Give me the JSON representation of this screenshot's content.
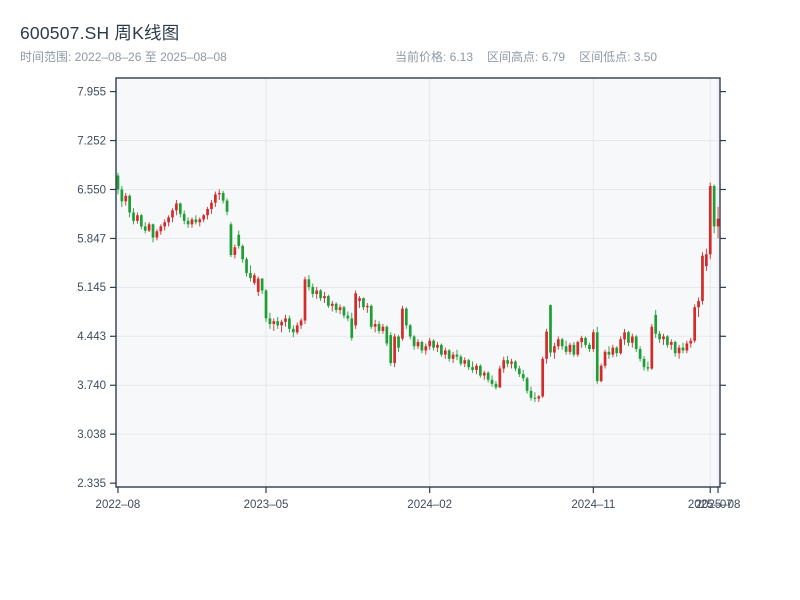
{
  "header": {
    "title": "600507.SH 周K线图",
    "subtitle": "时间范围: 2022–08–26 至 2025–08–08",
    "stats": [
      "当前价格: 6.13",
      "区间高点: 6.79",
      "区间低点: 3.50"
    ],
    "current_price": "6.13",
    "range_high": "6.79",
    "range_low": "3.50"
  },
  "chart_data": {
    "type": "candlestick",
    "period": "weekly",
    "symbol": "600507.SH",
    "x_range_labels": [
      "2022–08–26",
      "2025–08–08"
    ],
    "ylim": [
      2.28,
      8.15
    ],
    "grid": true,
    "panel_bg": "#f7f8fa",
    "grid_color": "#e5e8eb",
    "axis_color": "#2f3b4f",
    "label_color": "#3f4c5c",
    "up_color": "#d32a2a",
    "down_color": "#1e9e34",
    "y_ticks": [
      {
        "label": "7.955",
        "value": 7.955
      },
      {
        "label": "7.252",
        "value": 7.252
      },
      {
        "label": "6.550",
        "value": 6.55
      },
      {
        "label": "5.847",
        "value": 5.847
      },
      {
        "label": "5.145",
        "value": 5.145
      },
      {
        "label": "4.443",
        "value": 4.443
      },
      {
        "label": "3.740",
        "value": 3.74
      },
      {
        "label": "3.038",
        "value": 3.038
      },
      {
        "label": "2.335",
        "value": 2.335
      }
    ],
    "x_ticks": [
      {
        "label": "2022–08",
        "index": 0
      },
      {
        "label": "2023–05",
        "index": 38
      },
      {
        "label": "2024–02",
        "index": 80
      },
      {
        "label": "2024–11",
        "index": 122
      },
      {
        "label": "2025–07",
        "index": 152
      },
      {
        "label": "2025–08",
        "index": 154
      }
    ],
    "candles": [
      [
        6.75,
        6.79,
        6.48,
        6.55
      ],
      [
        6.55,
        6.6,
        6.3,
        6.38
      ],
      [
        6.38,
        6.5,
        6.32,
        6.46
      ],
      [
        6.46,
        6.48,
        6.15,
        6.22
      ],
      [
        6.22,
        6.28,
        6.05,
        6.1
      ],
      [
        6.1,
        6.22,
        6.06,
        6.18
      ],
      [
        6.18,
        6.2,
        5.98,
        6.02
      ],
      [
        6.02,
        6.08,
        5.92,
        5.96
      ],
      [
        5.96,
        6.08,
        5.94,
        6.05
      ],
      [
        6.05,
        6.06,
        5.79,
        5.86
      ],
      [
        5.86,
        5.98,
        5.82,
        5.95
      ],
      [
        5.95,
        6.05,
        5.9,
        6.02
      ],
      [
        6.02,
        6.12,
        5.96,
        6.08
      ],
      [
        6.08,
        6.18,
        6.02,
        6.15
      ],
      [
        6.15,
        6.28,
        6.08,
        6.25
      ],
      [
        6.25,
        6.4,
        6.18,
        6.35
      ],
      [
        6.35,
        6.36,
        6.15,
        6.2
      ],
      [
        6.2,
        6.25,
        6.05,
        6.1
      ],
      [
        6.1,
        6.15,
        6.0,
        6.05
      ],
      [
        6.05,
        6.15,
        6.0,
        6.12
      ],
      [
        6.12,
        6.18,
        6.05,
        6.08
      ],
      [
        6.08,
        6.15,
        6.02,
        6.12
      ],
      [
        6.12,
        6.2,
        6.08,
        6.18
      ],
      [
        6.18,
        6.3,
        6.12,
        6.27
      ],
      [
        6.27,
        6.4,
        6.2,
        6.36
      ],
      [
        6.36,
        6.52,
        6.3,
        6.48
      ],
      [
        6.48,
        6.55,
        6.4,
        6.5
      ],
      [
        6.5,
        6.53,
        6.35,
        6.39
      ],
      [
        6.39,
        6.42,
        6.18,
        6.23
      ],
      [
        6.05,
        6.08,
        5.58,
        5.61
      ],
      [
        5.61,
        5.76,
        5.56,
        5.72
      ],
      [
        5.9,
        5.96,
        5.7,
        5.74
      ],
      [
        5.74,
        5.76,
        5.5,
        5.55
      ],
      [
        5.55,
        5.58,
        5.3,
        5.35
      ],
      [
        5.35,
        5.46,
        5.23,
        5.28
      ],
      [
        5.21,
        5.35,
        5.18,
        5.32
      ],
      [
        5.08,
        5.3,
        5.02,
        5.27
      ],
      [
        5.27,
        5.28,
        5.05,
        5.1
      ],
      [
        5.1,
        5.12,
        4.65,
        4.7
      ],
      [
        4.7,
        4.78,
        4.55,
        4.62
      ],
      [
        4.62,
        4.7,
        4.52,
        4.66
      ],
      [
        4.66,
        4.72,
        4.55,
        4.6
      ],
      [
        4.6,
        4.68,
        4.5,
        4.65
      ],
      [
        4.65,
        4.75,
        4.58,
        4.7
      ],
      [
        4.7,
        4.74,
        4.5,
        4.55
      ],
      [
        4.55,
        4.6,
        4.43,
        4.5
      ],
      [
        4.5,
        4.64,
        4.47,
        4.6
      ],
      [
        4.6,
        4.7,
        4.55,
        4.67
      ],
      [
        4.67,
        5.3,
        4.62,
        5.26
      ],
      [
        5.26,
        5.32,
        5.1,
        5.15
      ],
      [
        5.15,
        5.2,
        5.0,
        5.05
      ],
      [
        5.05,
        5.15,
        4.98,
        5.1
      ],
      [
        5.1,
        5.12,
        4.95,
        4.99
      ],
      [
        4.99,
        5.08,
        4.92,
        5.02
      ],
      [
        5.02,
        5.04,
        4.85,
        4.88
      ],
      [
        4.88,
        4.95,
        4.8,
        4.91
      ],
      [
        4.91,
        4.93,
        4.78,
        4.82
      ],
      [
        4.82,
        4.9,
        4.76,
        4.86
      ],
      [
        4.86,
        4.88,
        4.7,
        4.74
      ],
      [
        4.74,
        4.8,
        4.66,
        4.7
      ],
      [
        4.7,
        4.78,
        4.38,
        4.42
      ],
      [
        4.6,
        5.1,
        4.55,
        5.06
      ],
      [
        4.95,
        5.02,
        4.85,
        4.99
      ],
      [
        4.99,
        5.0,
        4.82,
        4.86
      ],
      [
        4.86,
        4.92,
        4.78,
        4.88
      ],
      [
        4.88,
        4.9,
        4.55,
        4.58
      ],
      [
        4.58,
        4.68,
        4.5,
        4.62
      ],
      [
        4.62,
        4.66,
        4.48,
        4.52
      ],
      [
        4.52,
        4.62,
        4.48,
        4.58
      ],
      [
        4.58,
        4.6,
        4.3,
        4.34
      ],
      [
        4.46,
        4.5,
        4.02,
        4.06
      ],
      [
        4.06,
        4.48,
        4.0,
        4.44
      ],
      [
        4.44,
        4.46,
        4.22,
        4.28
      ],
      [
        4.41,
        4.88,
        4.38,
        4.84
      ],
      [
        4.84,
        4.86,
        4.55,
        4.6
      ],
      [
        4.6,
        4.62,
        4.4,
        4.44
      ],
      [
        4.44,
        4.46,
        4.25,
        4.3
      ],
      [
        4.3,
        4.4,
        4.26,
        4.36
      ],
      [
        4.36,
        4.38,
        4.2,
        4.24
      ],
      [
        4.24,
        4.34,
        4.18,
        4.3
      ],
      [
        4.3,
        4.42,
        4.25,
        4.38
      ],
      [
        4.38,
        4.4,
        4.24,
        4.28
      ],
      [
        4.28,
        4.36,
        4.22,
        4.32
      ],
      [
        4.32,
        4.34,
        4.15,
        4.18
      ],
      [
        4.18,
        4.28,
        4.12,
        4.24
      ],
      [
        4.24,
        4.26,
        4.08,
        4.12
      ],
      [
        4.12,
        4.22,
        4.06,
        4.18
      ],
      [
        4.18,
        4.25,
        4.1,
        4.15
      ],
      [
        4.15,
        4.18,
        4.02,
        4.05
      ],
      [
        4.05,
        4.14,
        4.0,
        4.1
      ],
      [
        4.1,
        4.12,
        3.96,
        4.0
      ],
      [
        4.0,
        4.08,
        3.92,
        3.96
      ],
      [
        3.96,
        4.05,
        3.9,
        4.02
      ],
      [
        4.02,
        4.04,
        3.85,
        3.88
      ],
      [
        3.88,
        3.95,
        3.82,
        3.92
      ],
      [
        3.92,
        3.94,
        3.78,
        3.82
      ],
      [
        3.82,
        3.88,
        3.72,
        3.76
      ],
      [
        3.76,
        3.8,
        3.68,
        3.71
      ],
      [
        3.71,
        4.02,
        3.7,
        3.98
      ],
      [
        3.98,
        4.15,
        3.92,
        4.1
      ],
      [
        4.1,
        4.16,
        4.0,
        4.05
      ],
      [
        4.05,
        4.12,
        3.98,
        4.08
      ],
      [
        4.08,
        4.1,
        3.94,
        3.98
      ],
      [
        3.98,
        4.02,
        3.86,
        3.9
      ],
      [
        3.9,
        3.96,
        3.8,
        3.84
      ],
      [
        3.84,
        3.86,
        3.62,
        3.66
      ],
      [
        3.66,
        3.72,
        3.52,
        3.56
      ],
      [
        3.56,
        3.64,
        3.5,
        3.55
      ],
      [
        3.55,
        3.6,
        3.5,
        3.58
      ],
      [
        3.58,
        4.15,
        3.56,
        4.12
      ],
      [
        4.12,
        4.55,
        4.05,
        4.51
      ],
      [
        4.89,
        4.9,
        4.15,
        4.21
      ],
      [
        4.21,
        4.35,
        4.12,
        4.3
      ],
      [
        4.3,
        4.44,
        4.25,
        4.4
      ],
      [
        4.4,
        4.42,
        4.25,
        4.3
      ],
      [
        4.3,
        4.38,
        4.18,
        4.22
      ],
      [
        4.22,
        4.35,
        4.18,
        4.32
      ],
      [
        4.32,
        4.36,
        4.15,
        4.18
      ],
      [
        4.18,
        4.38,
        4.15,
        4.36
      ],
      [
        4.36,
        4.45,
        4.28,
        4.42
      ],
      [
        4.42,
        4.44,
        4.28,
        4.32
      ],
      [
        4.32,
        4.35,
        4.22,
        4.26
      ],
      [
        4.26,
        4.54,
        4.22,
        4.5
      ],
      [
        4.5,
        4.58,
        3.76,
        3.8
      ],
      [
        3.8,
        4.05,
        3.78,
        4.02
      ],
      [
        4.02,
        4.25,
        3.98,
        4.22
      ],
      [
        4.22,
        4.3,
        4.12,
        4.18
      ],
      [
        4.18,
        4.32,
        4.14,
        4.28
      ],
      [
        4.28,
        4.3,
        4.15,
        4.2
      ],
      [
        4.2,
        4.44,
        4.18,
        4.4
      ],
      [
        4.4,
        4.55,
        4.32,
        4.5
      ],
      [
        4.5,
        4.52,
        4.3,
        4.35
      ],
      [
        4.35,
        4.48,
        4.28,
        4.44
      ],
      [
        4.44,
        4.46,
        4.22,
        4.26
      ],
      [
        4.26,
        4.3,
        4.08,
        4.12
      ],
      [
        4.12,
        4.16,
        3.95,
        4.0
      ],
      [
        4.0,
        4.08,
        3.94,
        3.98
      ],
      [
        3.98,
        4.62,
        3.96,
        4.58
      ],
      [
        4.75,
        4.82,
        4.42,
        4.48
      ],
      [
        4.48,
        4.52,
        4.35,
        4.4
      ],
      [
        4.4,
        4.48,
        4.32,
        4.44
      ],
      [
        4.44,
        4.46,
        4.28,
        4.32
      ],
      [
        4.32,
        4.4,
        4.25,
        4.36
      ],
      [
        4.36,
        4.38,
        4.15,
        4.2
      ],
      [
        4.2,
        4.32,
        4.12,
        4.28
      ],
      [
        4.28,
        4.35,
        4.2,
        4.24
      ],
      [
        4.24,
        4.38,
        4.2,
        4.34
      ],
      [
        4.34,
        4.42,
        4.28,
        4.38
      ],
      [
        4.38,
        4.9,
        4.35,
        4.86
      ],
      [
        4.86,
        5.0,
        4.72,
        4.95
      ],
      [
        4.95,
        5.65,
        4.9,
        5.6
      ],
      [
        5.45,
        5.7,
        5.38,
        5.62
      ],
      [
        5.62,
        6.65,
        5.55,
        6.6
      ],
      [
        6.6,
        6.62,
        5.92,
        6.02
      ],
      [
        6.02,
        6.3,
        5.85,
        6.13
      ]
    ]
  }
}
